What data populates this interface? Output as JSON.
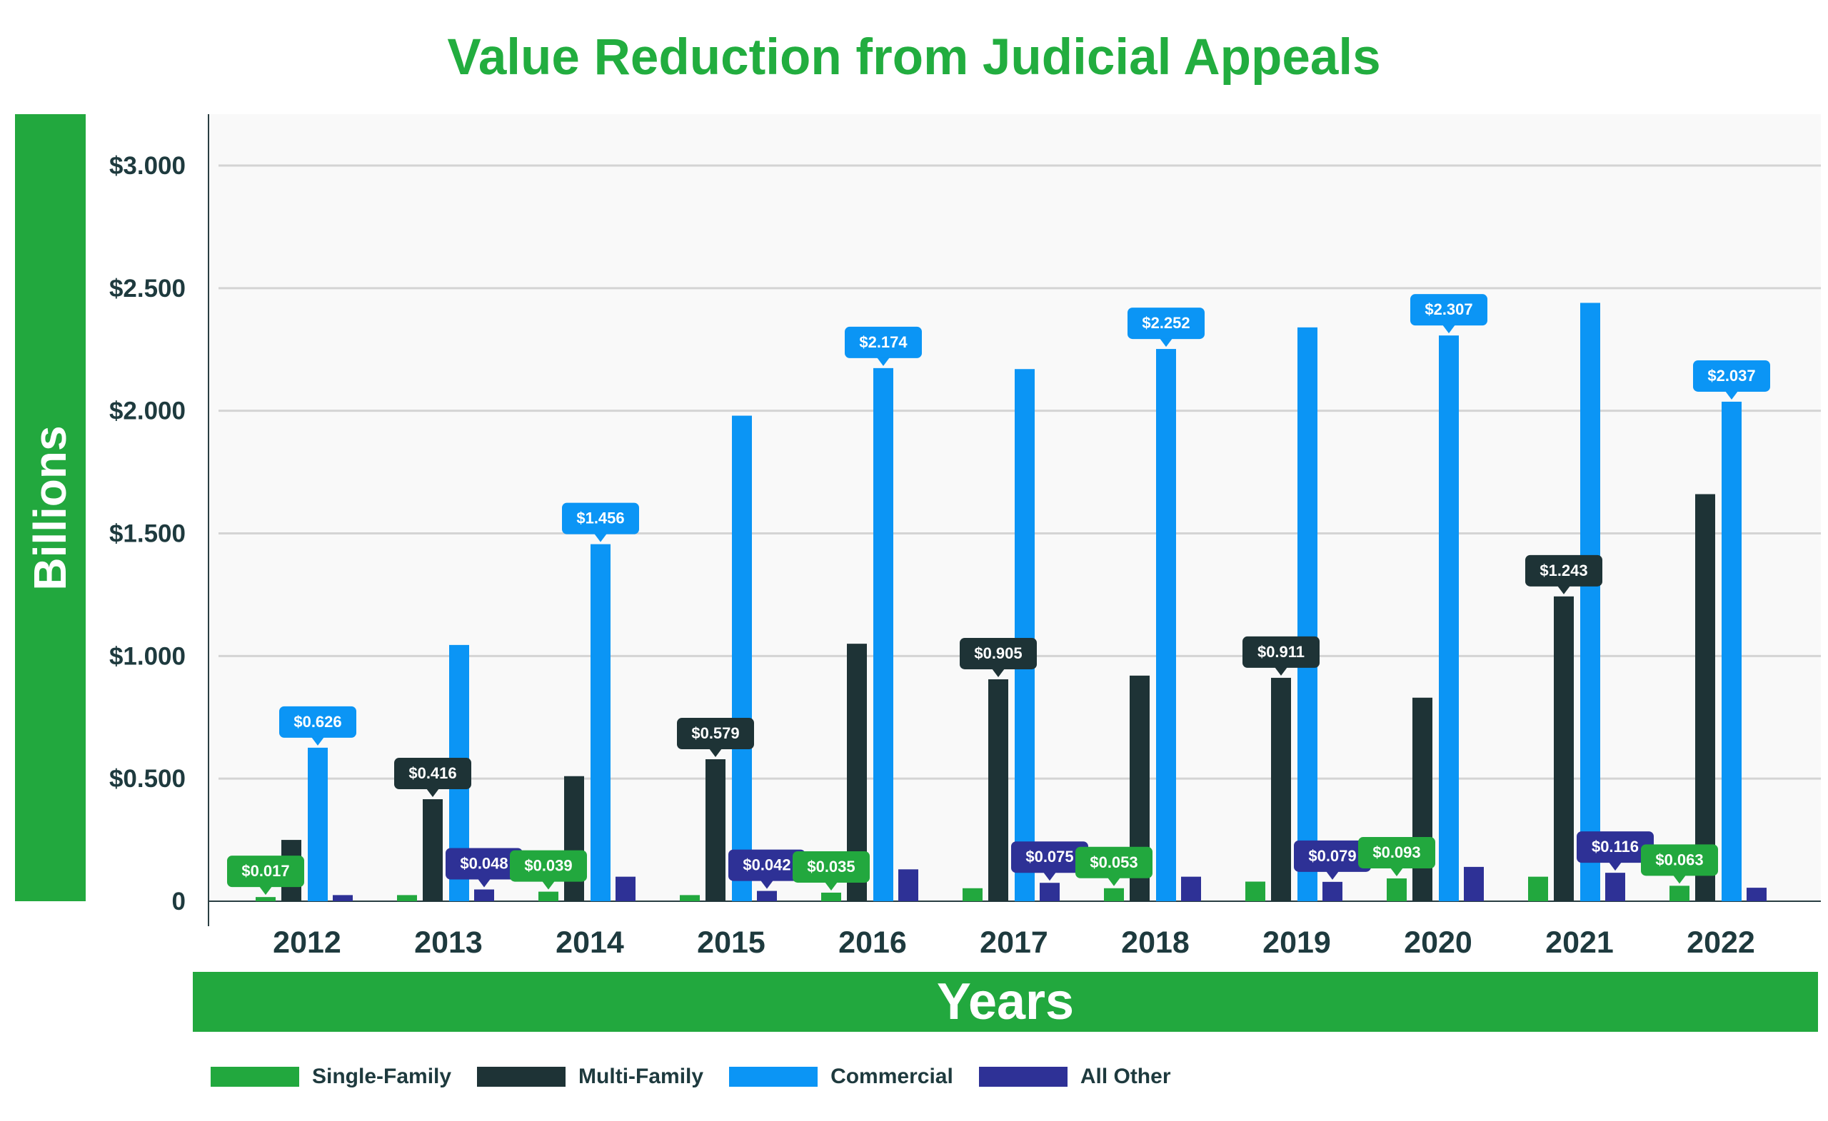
{
  "chart_data": {
    "type": "bar",
    "title": "Value Reduction from Judicial Appeals",
    "ylabel": "Billions",
    "xlabel": "Years",
    "ylim": [
      0,
      3.2
    ],
    "yticks": [
      "0",
      "$0.500",
      "$1.000",
      "$1.500",
      "$2.000",
      "$2.500",
      "$3.000"
    ],
    "ytick_values": [
      0,
      0.5,
      1.0,
      1.5,
      2.0,
      2.5,
      3.0
    ],
    "categories": [
      "2012",
      "2013",
      "2014",
      "2015",
      "2016",
      "2017",
      "2018",
      "2019",
      "2020",
      "2021",
      "2022"
    ],
    "grid": true,
    "legend_position": "bottom-left",
    "series": [
      {
        "name": "Single-Family",
        "color": "#22a83e",
        "values": [
          0.017,
          0.025,
          0.039,
          0.025,
          0.035,
          0.053,
          0.053,
          0.08,
          0.093,
          0.1,
          0.063
        ],
        "labels": [
          "$0.017",
          null,
          "$0.039",
          null,
          "$0.035",
          null,
          "$0.053",
          null,
          "$0.093",
          null,
          "$0.063"
        ]
      },
      {
        "name": "Multi-Family",
        "color": "#1e3336",
        "values": [
          0.25,
          0.416,
          0.51,
          0.579,
          1.05,
          0.905,
          0.92,
          0.911,
          0.83,
          1.243,
          1.66
        ],
        "labels": [
          null,
          "$0.416",
          null,
          "$0.579",
          null,
          "$0.905",
          null,
          "$0.911",
          null,
          "$1.243",
          null
        ]
      },
      {
        "name": "Commercial",
        "color": "#0b95f5",
        "values": [
          0.626,
          1.045,
          1.456,
          1.98,
          2.174,
          2.17,
          2.252,
          2.34,
          2.307,
          2.44,
          2.037
        ],
        "labels": [
          "$0.626",
          null,
          "$1.456",
          null,
          "$2.174",
          null,
          "$2.252",
          null,
          "$2.307",
          null,
          "$2.037"
        ]
      },
      {
        "name": "All Other",
        "color": "#2e3196",
        "values": [
          0.025,
          0.048,
          0.1,
          0.042,
          0.13,
          0.075,
          0.1,
          0.079,
          0.14,
          0.116,
          0.055
        ],
        "labels": [
          null,
          "$0.048",
          null,
          "$0.042",
          null,
          "$0.075",
          null,
          "$0.079",
          null,
          "$0.116",
          null
        ]
      }
    ]
  }
}
